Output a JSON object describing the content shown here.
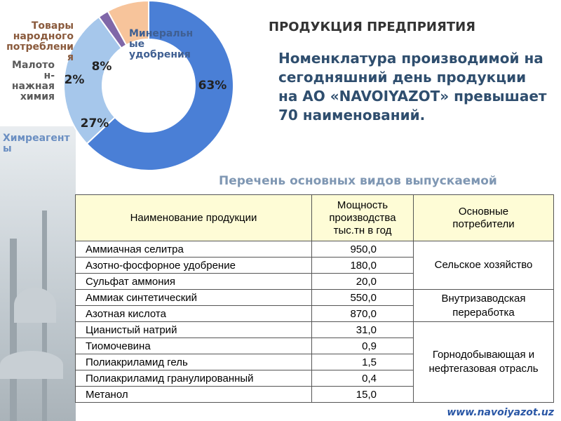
{
  "chart_data": {
    "type": "pie",
    "style": "donut",
    "title": "",
    "categories": [
      "Минеральные удобрения",
      "Химреагенты",
      "Малотоннажная химия",
      "Товары народного потребления"
    ],
    "category_labels": [
      [
        "Минеральн",
        "ые",
        "удобрения"
      ],
      [
        "Химреагент",
        "ы"
      ],
      [
        "Малото",
        "н-",
        "нажная",
        "химия"
      ],
      [
        "Товары",
        "народного",
        "потреблени",
        "я"
      ]
    ],
    "values": [
      63,
      27,
      2,
      8
    ],
    "value_labels": [
      "63%",
      "27%",
      "2%",
      "8%"
    ],
    "colors": [
      "#4a7fd6",
      "#a6c7eb",
      "#8067a8",
      "#f7c49b"
    ],
    "label_colors": [
      "#3f5f92",
      "#6b8fc2",
      "#5a5a5a",
      "#8a5a3c"
    ],
    "legend": "none"
  },
  "header": {
    "title": "ПРОДУКЦИЯ ПРЕДПРИЯТИЯ",
    "description": "Номенклатура производимой на сегодняшний день продукции на АО «NAVOIYAZOT» превышает 70 наименований."
  },
  "list_heading": "Перечень основных видов выпускаемой",
  "table": {
    "headers": [
      "Наименование продукции",
      "Мощность производства тыс.тн в год",
      "Основные потребители"
    ],
    "rows": [
      {
        "name": "Аммиачная селитра",
        "capacity": "950,0"
      },
      {
        "name": "Азотно-фосфорное удобрение",
        "capacity": "180,0"
      },
      {
        "name": "Сульфат аммония",
        "capacity": "20,0"
      },
      {
        "name": "Аммиак синтетический",
        "capacity": "550,0"
      },
      {
        "name": "Азотная кислота",
        "capacity": "870,0"
      },
      {
        "name": "Цианистый натрий",
        "capacity": "31,0"
      },
      {
        "name": "Тиомочевина",
        "capacity": "0,9"
      },
      {
        "name": "Полиакриламид гель",
        "capacity": "1,5"
      },
      {
        "name": "Полиакриламид гранулированный",
        "capacity": "0,4"
      },
      {
        "name": "Метанол",
        "capacity": "15,0"
      }
    ],
    "consumer_groups": [
      {
        "label": "Сельское хозяйство",
        "rows": 3
      },
      {
        "label": "Внутризаводская переработка",
        "rows": 2
      },
      {
        "label": "Горнодобывающая и нефтегазовая отрасль",
        "rows": 5
      }
    ]
  },
  "website": "www.navoiyazot.uz"
}
